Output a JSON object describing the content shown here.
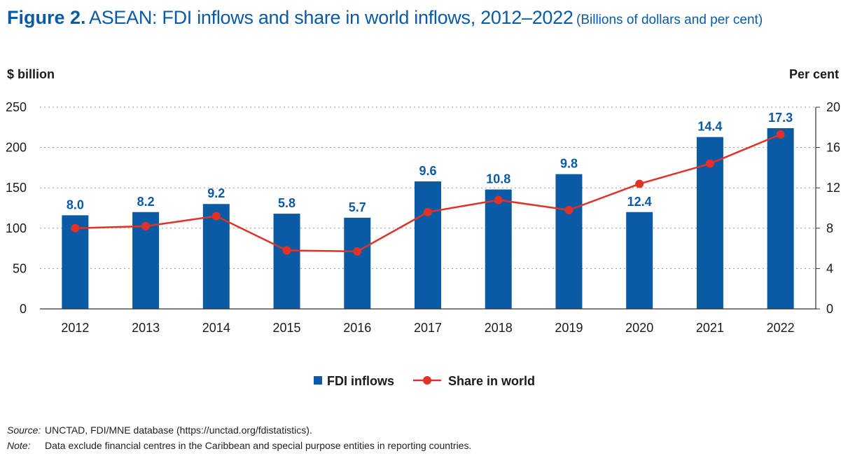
{
  "figure": {
    "number": "Figure 2.",
    "title": "ASEAN: FDI inflows and share in world inflows, 2012–2022",
    "units": "(Billions of dollars and per cent)"
  },
  "chart_data": {
    "type": "bar",
    "categories": [
      "2012",
      "2013",
      "2014",
      "2015",
      "2016",
      "2017",
      "2018",
      "2019",
      "2020",
      "2021",
      "2022"
    ],
    "series": [
      {
        "name": "FDI inflows",
        "type": "bar",
        "axis": "left",
        "color": "#0b5aa6",
        "values": [
          116,
          120,
          130,
          118,
          113,
          158,
          148,
          167,
          120,
          213,
          224
        ]
      },
      {
        "name": "Share in world",
        "type": "line",
        "axis": "right",
        "color": "#e03226",
        "values": [
          8.0,
          8.2,
          9.2,
          5.8,
          5.7,
          9.6,
          10.8,
          9.8,
          12.4,
          14.4,
          17.3
        ]
      }
    ],
    "bar_labels": [
      "8.0",
      "8.2",
      "9.2",
      "5.8",
      "5.7",
      "9.6",
      "10.8",
      "9.8",
      "12.4",
      "14.4",
      "17.3"
    ],
    "left_axis": {
      "label": "$ billion",
      "ticks": [
        "0",
        "50",
        "100",
        "150",
        "200",
        "250"
      ],
      "range": [
        0,
        250
      ]
    },
    "right_axis": {
      "label": "Per cent",
      "ticks": [
        "0",
        "4",
        "8",
        "12",
        "16",
        "20"
      ],
      "range": [
        0,
        20
      ]
    },
    "grid": "horizontal dotted",
    "legend": {
      "position": "bottom-center",
      "items": [
        "FDI inflows",
        "Share in world"
      ]
    }
  },
  "notes": {
    "source_label": "Source:",
    "source_text": "UNCTAD, FDI/MNE database (https://unctad.org/fdistatistics).",
    "note_label": "Note:",
    "note_text": "Data exclude financial centres in the Caribbean and special purpose entities in reporting countries."
  }
}
